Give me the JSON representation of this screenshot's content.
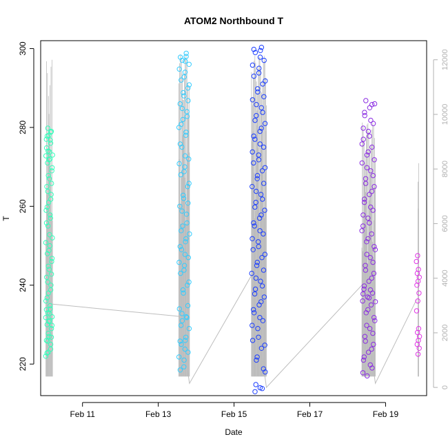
{
  "chart_data": {
    "type": "scatter",
    "title": "ATOM2 Northbound T",
    "xlabel": "Date",
    "ylabel": "T",
    "x_ticks": [
      "Feb 11",
      "Feb 13",
      "Feb 15",
      "Feb 17",
      "Feb 19"
    ],
    "y_ticks": [
      "220",
      "240",
      "260",
      "280",
      "300"
    ],
    "y2_ticks": [
      "0",
      "2000",
      "4000",
      "6000",
      "8000",
      "10000",
      "12000"
    ],
    "xlim": [
      "2008-02-09T21:30",
      "2008-02-20T02:00"
    ],
    "ylim": [
      212,
      302
    ],
    "y2lim": [
      -300,
      12700
    ],
    "colors": {
      "altitude_line": "#bdbdbd",
      "right_axis": "#b0b0b0",
      "frame": "#000000"
    },
    "series": [
      {
        "color": "#33ffbb",
        "x_range": [
          "2008-02-10T00:45",
          "2008-02-10T05:00"
        ],
        "x_center": "2008-02-10T02:50",
        "t_values": [
          222,
          223,
          225,
          226,
          227,
          229,
          230,
          231,
          232,
          233,
          234,
          236,
          238,
          240,
          242,
          244,
          246,
          248,
          250,
          252,
          255,
          257,
          259,
          261,
          263,
          265,
          267,
          269,
          271,
          272,
          273,
          274,
          276,
          277,
          278,
          279
        ]
      },
      {
        "color": "#33ccff",
        "x_range": [
          "2008-02-13T13:00",
          "2008-02-13T19:45"
        ],
        "x_center": "2008-02-13T16:20",
        "t_values": [
          218.5,
          221,
          223,
          225,
          226,
          229,
          231,
          232,
          234,
          238,
          240,
          243,
          245,
          247,
          249,
          251,
          253,
          255,
          258,
          260,
          262,
          265,
          268,
          270,
          272,
          275,
          278,
          280,
          282,
          284,
          286,
          288,
          290,
          292,
          294,
          296,
          297,
          298
        ]
      },
      {
        "color": "#1a3dff",
        "x_range": [
          "2008-02-15T11:00",
          "2008-02-15T19:45"
        ],
        "x_center": "2008-02-15T15:20",
        "t_values": [
          213,
          214,
          218,
          221,
          224,
          226,
          229,
          231,
          233,
          235,
          237,
          239,
          241,
          243,
          245,
          247,
          249,
          251,
          253,
          255,
          257,
          259,
          261,
          263,
          265,
          267,
          269,
          271,
          273,
          275,
          277,
          279,
          281,
          283,
          285,
          287,
          289,
          291,
          293,
          295,
          297,
          299,
          299.5
        ]
      },
      {
        "color": "#8a2be2",
        "x_range": [
          "2008-02-18T09:00",
          "2008-02-18T17:30"
        ],
        "x_center": "2008-02-18T13:10",
        "t_values": [
          217,
          219,
          221,
          223,
          225,
          227,
          229,
          231,
          233,
          235,
          236,
          237,
          238,
          239,
          241,
          243,
          245,
          247,
          249,
          251,
          253,
          255,
          257,
          259,
          261,
          263,
          265,
          267,
          269,
          271,
          273,
          275,
          277,
          279,
          281,
          283,
          285,
          286
        ]
      },
      {
        "color": "#e033e6",
        "x_range": [
          "2008-02-19T19:30",
          "2008-02-19T21:30"
        ],
        "x_center": "2008-02-19T20:30",
        "t_values": [
          222.5,
          224,
          225,
          226,
          227,
          228,
          229,
          233.5,
          236,
          238,
          240,
          241,
          242,
          243,
          244,
          246,
          247.5
        ]
      }
    ],
    "altitude_path": [
      {
        "x": "2008-02-10T05:00",
        "y2": 3050
      },
      {
        "x": "2008-02-13T13:30",
        "y2": 2600
      },
      {
        "x": "2008-02-13T19:45",
        "y2": 150
      },
      {
        "x": "2008-02-15T11:00",
        "y2": 4100
      },
      {
        "x": "2008-02-15T20:30",
        "y2": 0
      },
      {
        "x": "2008-02-18T09:00",
        "y2": 3750
      },
      {
        "x": "2008-02-18T17:30",
        "y2": 150
      },
      {
        "x": "2008-02-19T19:30",
        "y2": 3200
      }
    ],
    "altitude_spikes": [
      {
        "x_range": [
          "2008-02-10T00:50",
          "2008-02-10T05:00"
        ],
        "y2_max": 12000,
        "count": 14
      },
      {
        "x_range": [
          "2008-02-13T13:00",
          "2008-02-13T19:45"
        ],
        "y2_max": 12200,
        "count": 26
      },
      {
        "x_range": [
          "2008-02-15T11:00",
          "2008-02-15T20:30"
        ],
        "y2_max": 12150,
        "count": 40
      },
      {
        "x_range": [
          "2008-02-18T09:00",
          "2008-02-18T17:30"
        ],
        "y2_max": 9700,
        "count": 32
      },
      {
        "x_range": [
          "2008-02-19T20:30",
          "2008-02-19T21:00"
        ],
        "y2_max": 8700,
        "count": 3
      }
    ]
  }
}
